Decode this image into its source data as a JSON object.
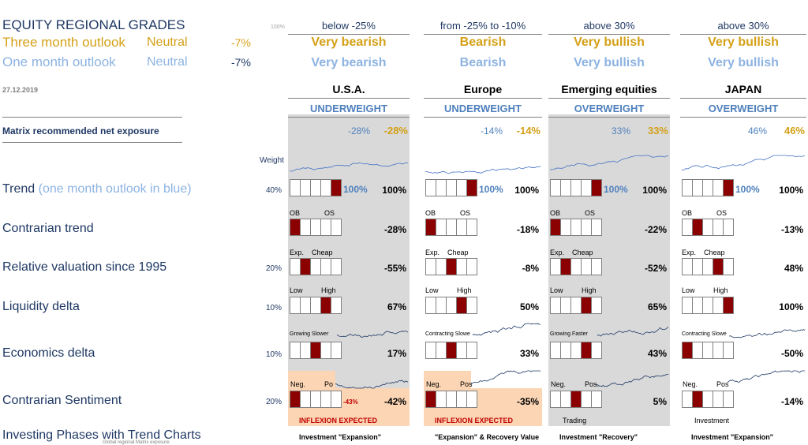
{
  "title": "EQUITY REGIONAL GRADES",
  "three_month": {
    "label": "Three month outlook",
    "status": "Neutral",
    "value": "-7%"
  },
  "one_month": {
    "label": "One month outlook",
    "status": "Neutral",
    "value": "-7%"
  },
  "hundred": "100%",
  "date": "27.12.2019",
  "matrix_label": "Matrix recommended net exposure",
  "weight_label": "Weight",
  "rows": {
    "trend": "Trend",
    "trend_sub": "(one month outlook in blue)",
    "contrarian": "Contrarian trend",
    "valuation": "Relative valuation since 1995",
    "liquidity": "Liquidity delta",
    "economics": "Economics delta",
    "sentiment": "Contrarian Sentiment",
    "phases": "Investing Phases with Trend Charts"
  },
  "weights": {
    "trend": "40%",
    "valuation": "20%",
    "liquidity": "10%",
    "economics": "10%",
    "sentiment": "20%"
  },
  "footer": "Global regional Matrix exposure",
  "colors": {
    "navy": "#1f3864",
    "gold": "#d4a017",
    "light_blue": "#8db3e2",
    "mid_blue": "#4f81bd",
    "dark_red": "#8b0000",
    "shade": "#d9d9d9",
    "peach": "#fcd5b4"
  },
  "regions": [
    {
      "range": "below -25%",
      "outlook3": "Very bearish",
      "outlook1": "Very bearish",
      "name": "U.S.A.",
      "rating": "UNDERWEIGHT",
      "exp_blue": "-28%",
      "exp_gold": "-28%",
      "trend_blue": "100%",
      "trend": "100%",
      "contrarian_hdr": [
        "OB",
        "OS"
      ],
      "contrarian": "-28%",
      "valuation_hdr": [
        "Exp.",
        "Cheap"
      ],
      "valuation": "-55%",
      "liquidity_hdr": [
        "Low",
        "High"
      ],
      "liquidity": "67%",
      "econ_hdr": "Growing Slower",
      "econ": "17%",
      "sent_hdr": [
        "Neg.",
        "Po"
      ],
      "sent_red": "-43%",
      "sent": "-42%",
      "inflexion": "INFLEXION EXPECTED",
      "phase": "Investment \"Expansion\"",
      "trend_on": 4,
      "contrarian_on": 0,
      "valuation_on": 1,
      "liquidity_on": 3,
      "econ_on": 2,
      "sent_on": 0
    },
    {
      "range": "from -25% to -10%",
      "outlook3": "Bearish",
      "outlook1": "Bearish",
      "name": "Europe",
      "rating": "UNDERWEIGHT",
      "exp_blue": "-14%",
      "exp_gold": "-14%",
      "trend_blue": "100%",
      "trend": "100%",
      "contrarian_hdr": [
        "OB",
        "OS"
      ],
      "contrarian": "-18%",
      "valuation_hdr": [
        "Exp.",
        "Cheap"
      ],
      "valuation": "-8%",
      "liquidity_hdr": [
        "Low",
        "High"
      ],
      "liquidity": "50%",
      "econ_hdr": "Contracting Slowe",
      "econ": "33%",
      "sent_hdr": [
        "Neg.",
        "Pos"
      ],
      "sent_red": "",
      "sent": "-35%",
      "inflexion": "INFLEXION EXPECTED",
      "phase": "\"Expansion\" & Recovery Value",
      "trend_on": 4,
      "contrarian_on": 0,
      "valuation_on": 2,
      "liquidity_on": 3,
      "econ_on": 2,
      "sent_on": 0
    },
    {
      "range": "above 30%",
      "outlook3": "Very bullish",
      "outlook1": "Very bullish",
      "name": "Emerging equities",
      "rating": "OVERWEIGHT",
      "exp_blue": "33%",
      "exp_gold": "33%",
      "trend_blue": "100%",
      "trend": "100%",
      "contrarian_hdr": [
        "OB",
        "OS"
      ],
      "contrarian": "-22%",
      "valuation_hdr": [
        "Exp.",
        "Cheap"
      ],
      "valuation": "-52%",
      "liquidity_hdr": [
        "Low",
        "High"
      ],
      "liquidity": "65%",
      "econ_hdr": "Growing Faster",
      "econ": "43%",
      "sent_hdr": [
        "Neg.",
        "Pos."
      ],
      "sent_red": "",
      "sent": "5%",
      "inflexion": "Trading",
      "phase": "Investment \"Recovery\"",
      "trend_on": 4,
      "contrarian_on": 0,
      "valuation_on": 1,
      "liquidity_on": 3,
      "econ_on": 3,
      "sent_on": 2
    },
    {
      "range": "above 30%",
      "outlook3": "Very bullish",
      "outlook1": "Very bullish",
      "name": "JAPAN",
      "rating": "OVERWEIGHT",
      "exp_blue": "46%",
      "exp_gold": "46%",
      "trend_blue": "100%",
      "trend": "100%",
      "contrarian_hdr": [
        "OB",
        "OS"
      ],
      "contrarian": "-13%",
      "valuation_hdr": [
        "Exp.",
        "Cheap"
      ],
      "valuation": "48%",
      "liquidity_hdr": [
        "Low",
        "High"
      ],
      "liquidity": "100%",
      "econ_hdr": "Contracting Slowe",
      "econ": "-50%",
      "sent_hdr": [
        "Neg.",
        "Pos"
      ],
      "sent_red": "",
      "sent": "-14%",
      "inflexion": "Investment",
      "phase": "Investment \"Expansion\"",
      "trend_on": 4,
      "contrarian_on": 1,
      "valuation_on": 3,
      "liquidity_on": 4,
      "econ_on": 0,
      "sent_on": 1
    }
  ]
}
